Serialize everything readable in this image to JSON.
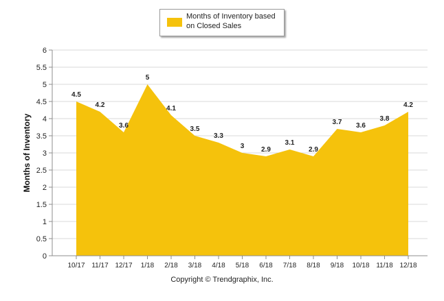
{
  "chart_data": {
    "type": "area",
    "categories": [
      "10/17",
      "11/17",
      "12/17",
      "1/18",
      "2/18",
      "3/18",
      "4/18",
      "5/18",
      "6/18",
      "7/18",
      "8/18",
      "9/18",
      "10/18",
      "11/18",
      "12/18"
    ],
    "series": [
      {
        "name": "Months of Inventory based on Closed Sales",
        "values": [
          4.5,
          4.2,
          3.6,
          5,
          4.1,
          3.5,
          3.3,
          3,
          2.9,
          3.1,
          2.9,
          3.7,
          3.6,
          3.8,
          4.2
        ],
        "data_labels": [
          "4.5",
          "4.2",
          "3.6",
          "5",
          "4.1",
          "3.5",
          "3.3",
          "3",
          "2.9",
          "3.1",
          "2.9",
          "3.7",
          "3.6",
          "3.8",
          "4.2"
        ],
        "color": "#F5C20C"
      }
    ],
    "ylabel": "Months of Inventory",
    "xlabel": "",
    "ylim": [
      0,
      6
    ],
    "yticks": [
      0,
      0.5,
      1,
      1.5,
      2,
      2.5,
      3,
      3.5,
      4,
      4.5,
      5,
      5.5,
      6
    ],
    "ytick_labels": [
      "0",
      "0.5",
      "1",
      "1.5",
      "2",
      "2.5",
      "3",
      "3.5",
      "4",
      "4.5",
      "5",
      "5.5",
      "6"
    ],
    "grid": true,
    "legend_position": "top-center",
    "gridline_color": "#d9d9d9",
    "axis_color": "#8c8c8c"
  },
  "legend": {
    "label_line1": "Months of Inventory based",
    "label_line2": "on Closed Sales"
  },
  "footer": {
    "copyright": "Copyright © Trendgraphix, Inc."
  }
}
